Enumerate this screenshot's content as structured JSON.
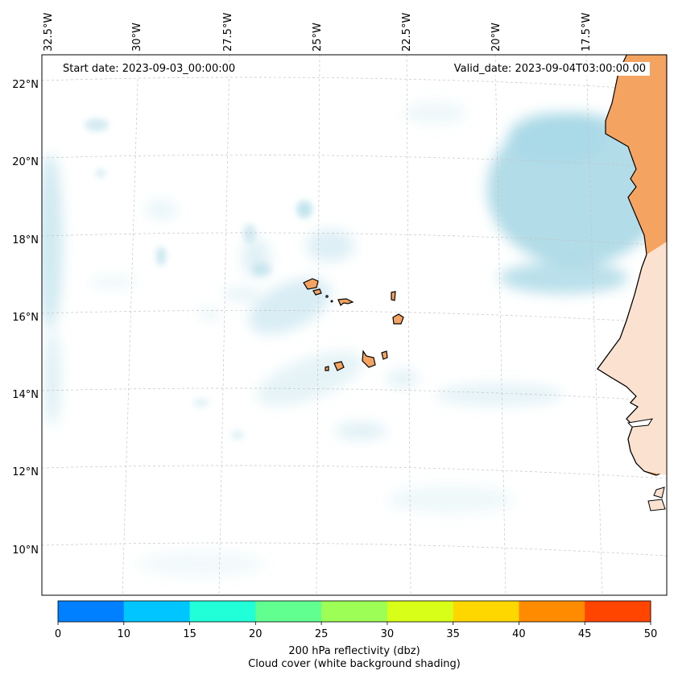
{
  "map": {
    "start_date": "Start date: 2023-09-03_00:00:00",
    "valid_date": "Valid_date: 2023-09-04T03:00:00.00",
    "lon_labels": [
      "32.5°W",
      "30°W",
      "27.5°W",
      "25°W",
      "22.5°W",
      "20°W",
      "17.5°W"
    ],
    "lat_labels": [
      "22°N",
      "20°N",
      "18°N",
      "16°N",
      "14°N",
      "12°N",
      "10°N"
    ],
    "colors": {
      "cloud": "#a9d8e6",
      "land": "#f4a460",
      "coast": "#000000",
      "gridline": "#b0b0b0"
    }
  },
  "colorbar": {
    "ticks": [
      "0",
      "10",
      "15",
      "20",
      "25",
      "30",
      "35",
      "40",
      "45",
      "50"
    ],
    "colors": [
      "#0080ff",
      "#00c5ff",
      "#20ffd8",
      "#60ff90",
      "#9dff56",
      "#d8ff18",
      "#ffd700",
      "#ff8c00",
      "#ff4500"
    ],
    "caption_line1": "200 hPa reflectivity (dbz)",
    "caption_line2": "Cloud cover (white background shading)"
  }
}
